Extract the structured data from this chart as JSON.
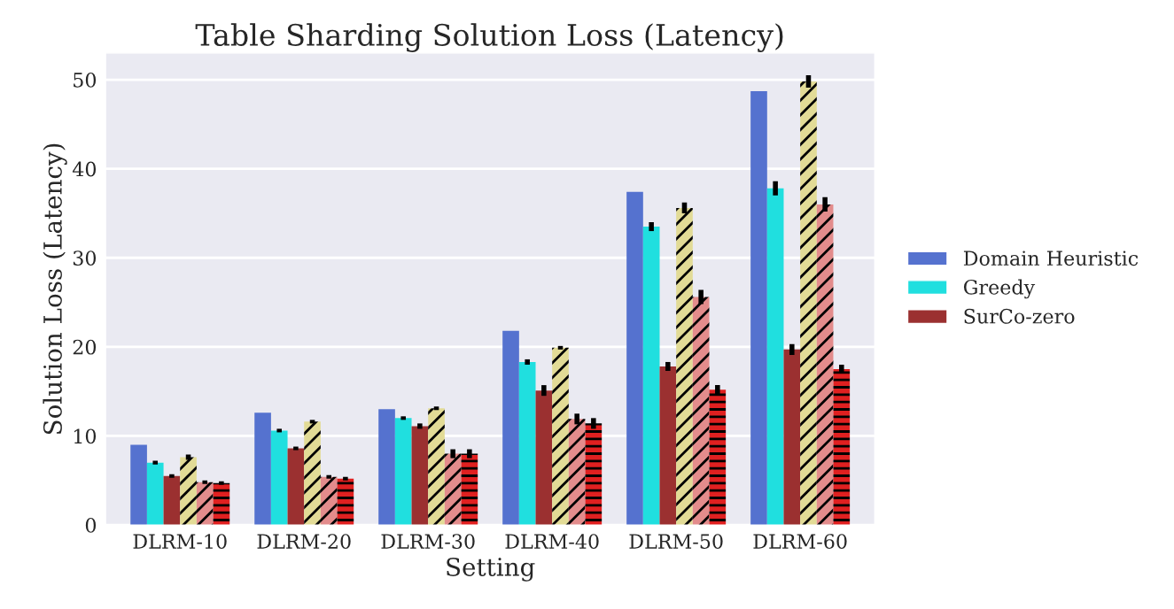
{
  "chart_data": {
    "type": "bar",
    "title": "Table Sharding Solution Loss (Latency)",
    "xlabel": "Setting",
    "ylabel": "Solution Loss (Latency)",
    "categories": [
      "DLRM-10",
      "DLRM-20",
      "DLRM-30",
      "DLRM-40",
      "DLRM-50",
      "DLRM-60"
    ],
    "series": [
      {
        "name": "Domain Heuristic",
        "color": "#5572cf",
        "values": [
          9.0,
          12.6,
          13.0,
          21.8,
          37.4,
          48.7
        ]
      },
      {
        "name": "Greedy",
        "color": "#20dfdf",
        "values": [
          7.0,
          10.6,
          12.0,
          18.3,
          33.5,
          37.8
        ],
        "errors": [
          0.2,
          0.2,
          0.2,
          0.3,
          0.5,
          0.8
        ]
      },
      {
        "name": "SurCo-zero",
        "color": "#9b3030",
        "values": [
          5.5,
          8.6,
          11.1,
          15.1,
          17.8,
          19.7
        ],
        "errors": [
          0.2,
          0.2,
          0.3,
          0.6,
          0.5,
          0.6
        ]
      },
      {
        "color": "#e2db96",
        "values": [
          7.6,
          11.6,
          13.1,
          19.9,
          35.6,
          49.8
        ],
        "errors": [
          0.3,
          0.2,
          0.2,
          0.2,
          0.6,
          0.7
        ]
      },
      {
        "color": "#e38c8c",
        "values": [
          4.8,
          5.4,
          8.0,
          11.9,
          25.6,
          36.0
        ],
        "errors": [
          0.2,
          0.2,
          0.5,
          0.6,
          0.8,
          0.8
        ]
      },
      {
        "color": "#e02020",
        "values": [
          4.7,
          5.2,
          8.0,
          11.4,
          15.2,
          17.5
        ],
        "errors": [
          0.2,
          0.2,
          0.5,
          0.6,
          0.5,
          0.5
        ]
      }
    ],
    "ylim": [
      0,
      53
    ],
    "yticks": [
      0,
      10,
      20,
      30,
      40,
      50
    ],
    "grid": "y",
    "legend": "right"
  }
}
